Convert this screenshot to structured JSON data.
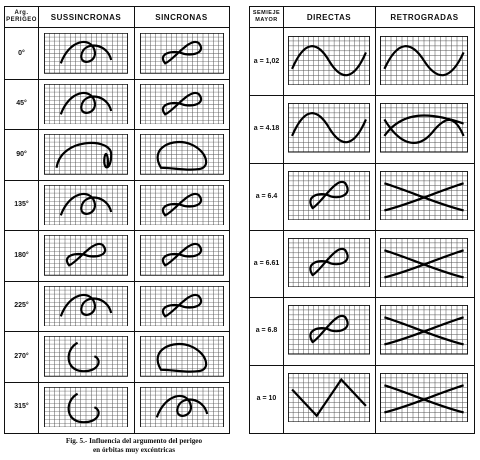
{
  "left_table": {
    "col_arg": "Arg.\nPERIGEO",
    "col_sub": "SUSSINCRONAS",
    "col_sin": "SINCRONAS",
    "rows": [
      {
        "label": "0°",
        "sub_icon": "curve-loop-icon",
        "sin_icon": "curve-figure8-icon"
      },
      {
        "label": "45°",
        "sub_icon": "curve-loop-icon",
        "sin_icon": "curve-figure8-icon"
      },
      {
        "label": "90°",
        "sub_icon": "curve-arch-icon",
        "sin_icon": "curve-closed-icon"
      },
      {
        "label": "135°",
        "sub_icon": "curve-loop-icon",
        "sin_icon": "curve-figure8-icon"
      },
      {
        "label": "180°",
        "sub_icon": "curve-figure8-icon",
        "sin_icon": "curve-figure8-icon"
      },
      {
        "label": "225°",
        "sub_icon": "curve-loop-icon",
        "sin_icon": "curve-figure8-icon"
      },
      {
        "label": "270°",
        "sub_icon": "curve-hook-icon",
        "sin_icon": "curve-closed-icon"
      },
      {
        "label": "315°",
        "sub_icon": "curve-hook-icon",
        "sin_icon": "curve-loop-icon"
      }
    ]
  },
  "right_table": {
    "col_axis": "SEMIEJE\nMAYOR",
    "col_dir": "DIRECTAS",
    "col_ret": "RETROGRADAS",
    "rows": [
      {
        "label": "a = 1,02",
        "dir_icon": "curve-sine-icon",
        "ret_icon": "curve-sine-icon"
      },
      {
        "label": "a = 4.18",
        "dir_icon": "curve-sine-icon",
        "ret_icon": "curve-double-sine-icon"
      },
      {
        "label": "a = 6.4",
        "dir_icon": "curve-figure8-icon",
        "ret_icon": "curve-cross-icon"
      },
      {
        "label": "a = 6.61",
        "dir_icon": "curve-figure8-icon",
        "ret_icon": "curve-cross-icon"
      },
      {
        "label": "a = 6.8",
        "dir_icon": "curve-figure8-icon",
        "ret_icon": "curve-cross-icon"
      },
      {
        "label": "a = 10",
        "dir_icon": "curve-zigzag-icon",
        "ret_icon": "curve-cross-icon"
      }
    ]
  },
  "caption": {
    "line1": "Fig. 5.- Influencia del argumento del perigeo",
    "line2": "en órbitas muy excéntricas"
  }
}
